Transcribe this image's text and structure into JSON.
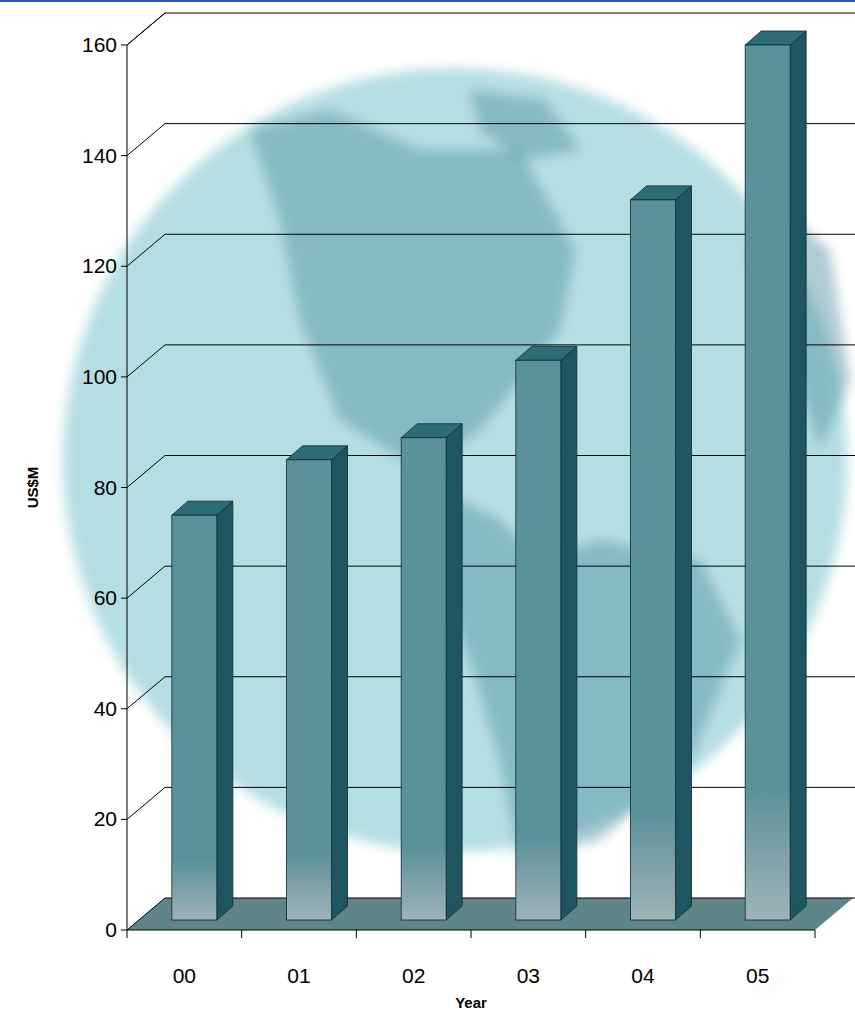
{
  "chart_data": {
    "type": "bar",
    "categories": [
      "00",
      "01",
      "02",
      "03",
      "04",
      "05"
    ],
    "values": [
      75,
      85,
      89,
      103,
      132,
      160
    ],
    "color": "#5b9199",
    "x_label": "Year",
    "y_label": "US$M",
    "ylim": [
      0,
      160
    ],
    "yticks": [
      0,
      20,
      40,
      60,
      80,
      100,
      120,
      140,
      160
    ],
    "grid": true
  }
}
